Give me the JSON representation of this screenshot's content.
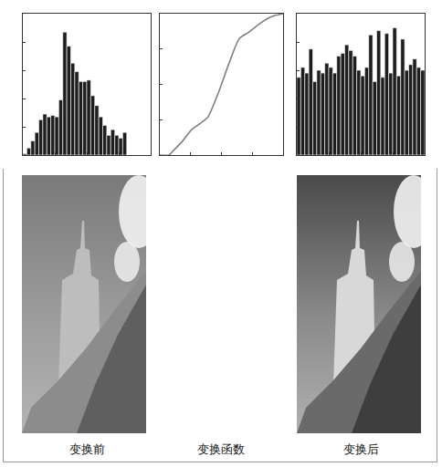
{
  "chart_data": [
    {
      "type": "histogram",
      "title": "变换前",
      "bins": [
        0,
        8,
        16,
        24,
        32,
        40,
        48,
        56,
        64,
        72,
        80,
        88,
        96,
        104,
        112,
        120,
        128,
        136,
        144,
        152,
        160,
        168,
        176,
        184,
        192,
        200,
        208
      ],
      "values": [
        1,
        5,
        10,
        16,
        25,
        29,
        27,
        28,
        27,
        39,
        87,
        77,
        65,
        59,
        52,
        52,
        53,
        42,
        35,
        27,
        21,
        14,
        18,
        14,
        12,
        16
      ],
      "color": "#1e1e1e",
      "xlim": [
        0,
        256
      ],
      "ylim": [
        0,
        100
      ],
      "xticks": [
        0,
        64,
        128,
        192,
        256
      ],
      "yticks": [
        0,
        20,
        40,
        60,
        80,
        100
      ],
      "tick_labels": false,
      "grid": false
    },
    {
      "type": "line",
      "title": "变换函数",
      "x": [
        0,
        19,
        28,
        47,
        66,
        85,
        100,
        123,
        142,
        165,
        184,
        209,
        233,
        256
      ],
      "values": [
        0,
        0,
        8,
        25,
        46,
        58,
        69,
        116,
        162,
        211,
        222,
        239,
        251,
        256
      ],
      "color": "#808080",
      "xlim": [
        0,
        256
      ],
      "ylim": [
        0,
        256
      ],
      "xticks": [
        0,
        64,
        128,
        192,
        256
      ],
      "yticks": [
        0,
        64,
        128,
        192,
        256
      ],
      "tick_labels": false,
      "grid": false
    },
    {
      "type": "histogram",
      "title": "变换后",
      "bins": [
        0,
        8,
        16,
        24,
        32,
        40,
        48,
        56,
        64,
        72,
        80,
        88,
        96,
        104,
        112,
        120,
        128,
        136,
        144,
        152,
        160,
        168,
        176,
        184,
        192,
        200,
        208,
        216,
        224,
        232,
        240,
        248,
        256
      ],
      "values": [
        55,
        62,
        58,
        75,
        52,
        60,
        58,
        65,
        62,
        58,
        70,
        72,
        78,
        74,
        70,
        60,
        56,
        62,
        85,
        52,
        88,
        55,
        86,
        58,
        90,
        56,
        82,
        60,
        64,
        68,
        62,
        60
      ],
      "color": "#1e1e1e",
      "xlim": [
        0,
        256
      ],
      "ylim": [
        0,
        100
      ],
      "xticks": [
        0,
        64,
        128,
        192,
        256
      ],
      "yticks": [
        0,
        20,
        40,
        60,
        80,
        100
      ],
      "tick_labels": false,
      "grid": false
    }
  ]
}
